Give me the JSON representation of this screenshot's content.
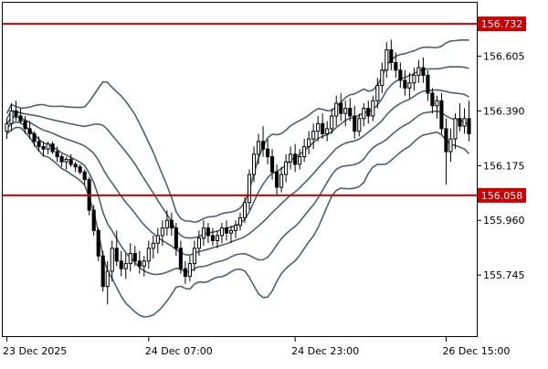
{
  "chart_data": {
    "type": "candlestick",
    "x_tick_labels": [
      "23 Dec 2025",
      "24 Dec 07:00",
      "24 Dec 23:00",
      "26 Dec 15:00"
    ],
    "x_tick_bar_index": [
      0,
      31,
      63,
      96
    ],
    "y_tick_labels": [
      "156.605",
      "156.390",
      "156.175",
      "155.960",
      "155.745"
    ],
    "y_tick_values": [
      156.605,
      156.39,
      156.175,
      155.96,
      155.745
    ],
    "ylim": [
      155.505,
      156.815
    ],
    "horizontal_levels": [
      {
        "value": 156.732,
        "label": "156.732",
        "color": "#cc0000"
      },
      {
        "value": 156.058,
        "label": "156.058",
        "color": "#cc0000"
      }
    ],
    "colors": {
      "bull": "#ffffff",
      "bear": "#000000",
      "wick": "#000000",
      "bands": "#47636e",
      "frame": "#000000"
    },
    "bars": [
      [
        156.31,
        156.36,
        156.28,
        156.34
      ],
      [
        156.34,
        156.42,
        156.31,
        156.39
      ],
      [
        156.39,
        156.43,
        156.35,
        156.37
      ],
      [
        156.37,
        156.4,
        156.34,
        156.35
      ],
      [
        156.35,
        156.37,
        156.3,
        156.32
      ],
      [
        156.32,
        156.35,
        156.28,
        156.3
      ],
      [
        156.3,
        156.31,
        156.25,
        156.27
      ],
      [
        156.27,
        156.29,
        156.23,
        156.25
      ],
      [
        156.25,
        156.27,
        156.21,
        156.24
      ],
      [
        156.24,
        156.27,
        156.22,
        156.26
      ],
      [
        156.26,
        156.27,
        156.22,
        156.23
      ],
      [
        156.23,
        156.25,
        156.19,
        156.21
      ],
      [
        156.21,
        156.22,
        156.17,
        156.19
      ],
      [
        156.19,
        156.21,
        156.16,
        156.2
      ],
      [
        156.2,
        156.22,
        156.17,
        156.18
      ],
      [
        156.18,
        156.19,
        156.15,
        156.17
      ],
      [
        156.17,
        156.18,
        156.14,
        156.15
      ],
      [
        156.15,
        156.16,
        156.1,
        156.12
      ],
      [
        156.12,
        156.13,
        155.98,
        156.0
      ],
      [
        156.0,
        156.02,
        155.9,
        155.92
      ],
      [
        155.92,
        155.93,
        155.8,
        155.82
      ],
      [
        155.82,
        155.84,
        155.68,
        155.7
      ],
      [
        155.7,
        155.8,
        155.63,
        155.76
      ],
      [
        155.76,
        155.88,
        155.72,
        155.85
      ],
      [
        155.85,
        155.92,
        155.78,
        155.8
      ],
      [
        155.8,
        155.84,
        155.74,
        155.77
      ],
      [
        155.77,
        155.83,
        155.73,
        155.79
      ],
      [
        155.79,
        155.87,
        155.76,
        155.83
      ],
      [
        155.83,
        155.86,
        155.78,
        155.8
      ],
      [
        155.8,
        155.84,
        155.75,
        155.78
      ],
      [
        155.78,
        155.82,
        155.74,
        155.8
      ],
      [
        155.8,
        155.88,
        155.77,
        155.85
      ],
      [
        155.85,
        155.9,
        155.81,
        155.87
      ],
      [
        155.87,
        155.93,
        155.83,
        155.9
      ],
      [
        155.9,
        155.96,
        155.86,
        155.93
      ],
      [
        155.93,
        156.0,
        155.9,
        155.96
      ],
      [
        155.96,
        155.99,
        155.9,
        155.93
      ],
      [
        155.93,
        155.95,
        155.82,
        155.85
      ],
      [
        155.85,
        155.88,
        155.75,
        155.77
      ],
      [
        155.77,
        155.8,
        155.71,
        155.74
      ],
      [
        155.74,
        155.82,
        155.72,
        155.79
      ],
      [
        155.79,
        155.88,
        155.76,
        155.85
      ],
      [
        155.85,
        155.92,
        155.82,
        155.89
      ],
      [
        155.89,
        155.96,
        155.86,
        155.93
      ],
      [
        155.93,
        155.95,
        155.87,
        155.9
      ],
      [
        155.9,
        155.93,
        155.86,
        155.88
      ],
      [
        155.88,
        155.92,
        155.85,
        155.9
      ],
      [
        155.9,
        155.95,
        155.87,
        155.93
      ],
      [
        155.93,
        155.96,
        155.88,
        155.91
      ],
      [
        155.91,
        155.94,
        155.87,
        155.92
      ],
      [
        155.92,
        155.96,
        155.89,
        155.94
      ],
      [
        155.94,
        155.99,
        155.92,
        155.97
      ],
      [
        155.97,
        156.05,
        155.95,
        156.03
      ],
      [
        156.03,
        156.16,
        156.0,
        156.14
      ],
      [
        156.14,
        156.25,
        156.11,
        156.22
      ],
      [
        156.22,
        156.3,
        156.18,
        156.27
      ],
      [
        156.27,
        156.33,
        156.21,
        156.24
      ],
      [
        156.24,
        156.28,
        156.18,
        156.21
      ],
      [
        156.21,
        156.24,
        156.12,
        156.15
      ],
      [
        156.15,
        156.18,
        156.06,
        156.09
      ],
      [
        156.09,
        156.17,
        156.07,
        156.14
      ],
      [
        156.14,
        156.22,
        156.11,
        156.19
      ],
      [
        156.19,
        156.25,
        156.16,
        156.22
      ],
      [
        156.22,
        156.26,
        156.15,
        156.18
      ],
      [
        156.18,
        156.24,
        156.16,
        156.21
      ],
      [
        156.21,
        156.28,
        156.19,
        156.25
      ],
      [
        156.25,
        156.31,
        156.22,
        156.28
      ],
      [
        156.28,
        156.34,
        156.24,
        156.31
      ],
      [
        156.31,
        156.37,
        156.27,
        156.34
      ],
      [
        156.34,
        156.38,
        156.28,
        156.3
      ],
      [
        156.3,
        156.35,
        156.27,
        156.32
      ],
      [
        156.32,
        156.4,
        156.3,
        156.37
      ],
      [
        156.37,
        156.45,
        156.33,
        156.42
      ],
      [
        156.42,
        156.46,
        156.35,
        156.38
      ],
      [
        156.38,
        156.43,
        156.33,
        156.4
      ],
      [
        156.4,
        156.44,
        156.35,
        156.37
      ],
      [
        156.37,
        156.41,
        156.28,
        156.31
      ],
      [
        156.31,
        156.38,
        156.29,
        156.36
      ],
      [
        156.36,
        156.42,
        156.33,
        156.4
      ],
      [
        156.4,
        156.43,
        156.34,
        156.37
      ],
      [
        156.37,
        156.45,
        156.35,
        156.43
      ],
      [
        156.43,
        156.52,
        156.4,
        156.49
      ],
      [
        156.49,
        156.58,
        156.46,
        156.55
      ],
      [
        156.55,
        156.66,
        156.52,
        156.63
      ],
      [
        156.63,
        156.67,
        156.55,
        156.58
      ],
      [
        156.58,
        156.62,
        156.52,
        156.55
      ],
      [
        156.55,
        156.58,
        156.48,
        156.51
      ],
      [
        156.51,
        156.55,
        156.45,
        156.48
      ],
      [
        156.48,
        156.54,
        156.44,
        156.5
      ],
      [
        156.5,
        156.56,
        156.47,
        156.53
      ],
      [
        156.53,
        156.59,
        156.5,
        156.56
      ],
      [
        156.56,
        156.6,
        156.5,
        156.53
      ],
      [
        156.53,
        156.55,
        156.43,
        156.46
      ],
      [
        156.46,
        156.48,
        156.38,
        156.41
      ],
      [
        156.41,
        156.45,
        156.36,
        156.43
      ],
      [
        156.43,
        156.46,
        156.3,
        156.32
      ],
      [
        156.32,
        156.36,
        156.1,
        156.23
      ],
      [
        156.23,
        156.32,
        156.19,
        156.28
      ],
      [
        156.28,
        156.38,
        156.24,
        156.36
      ],
      [
        156.36,
        156.42,
        156.31,
        156.33
      ],
      [
        156.33,
        156.4,
        156.3,
        156.36
      ],
      [
        156.36,
        156.43,
        156.27,
        156.3
      ]
    ]
  }
}
